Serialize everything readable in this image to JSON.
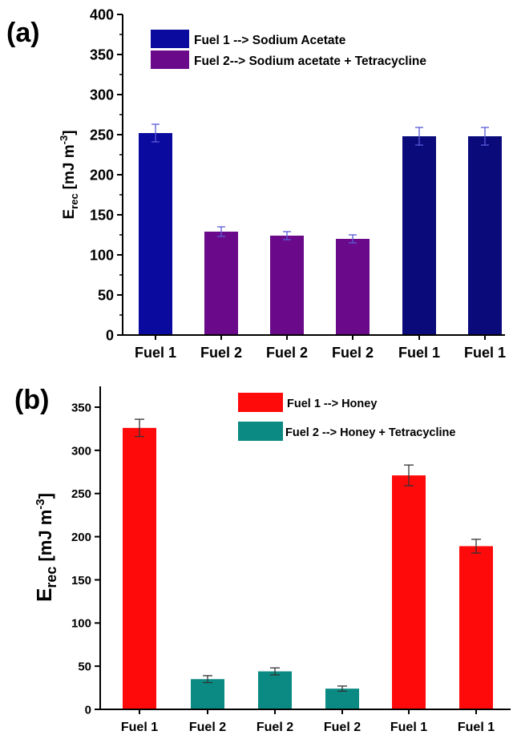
{
  "chart_data": [
    {
      "panel_label": "(a)",
      "type": "bar",
      "categories": [
        "Fuel 1",
        "Fuel 2",
        "Fuel 2",
        "Fuel 2",
        "Fuel 1",
        "Fuel 1"
      ],
      "values": [
        252,
        129,
        124,
        120,
        248,
        248
      ],
      "errors": [
        11,
        6,
        5,
        5,
        11,
        11
      ],
      "bar_colors": [
        "#0a0a9e",
        "#6a0a8a",
        "#6a0a8a",
        "#6a0a8a",
        "#0a0a7a",
        "#0a0a7a"
      ],
      "error_color": "#5a5ad8",
      "ylabel_main": "E",
      "ylabel_sub": "rec",
      "ylabel_unit": "[mJ m",
      "ylabel_sup": "-3",
      "ylabel_close": "]",
      "ylim": [
        0,
        400
      ],
      "yticks": [
        0,
        50,
        100,
        150,
        200,
        250,
        300,
        350,
        400
      ],
      "legend": [
        {
          "label": "Fuel 1 --> Sodium Acetate",
          "color": "#0a0a9e"
        },
        {
          "label": "Fuel 2--> Sodium acetate + Tetracycline",
          "color": "#6a0a8a"
        }
      ],
      "legend_position": "top",
      "grid": false
    },
    {
      "panel_label": "(b)",
      "type": "bar",
      "categories": [
        "Fuel 1",
        "Fuel 2",
        "Fuel 2",
        "Fuel 2",
        "Fuel 1",
        "Fuel 1"
      ],
      "values": [
        326,
        35,
        44,
        24,
        271,
        189
      ],
      "errors": [
        10,
        4,
        4,
        3,
        12,
        8
      ],
      "bar_colors": [
        "#ff0a0a",
        "#0a8a82",
        "#0a8a82",
        "#0a8a82",
        "#ff0a0a",
        "#ff0a0a"
      ],
      "error_color": "#333333",
      "ylabel_main": "E",
      "ylabel_sub": "rec",
      "ylabel_unit": "[mJ m",
      "ylabel_sup": "-3",
      "ylabel_close": "]",
      "ylim": [
        0,
        360
      ],
      "yticks": [
        0,
        50,
        100,
        150,
        200,
        250,
        300,
        350
      ],
      "legend": [
        {
          "label": "Fuel 1 --> Honey",
          "color": "#ff0a0a"
        },
        {
          "label": "Fuel 2 --> Honey + Tetracycline",
          "color": "#0a8a82"
        }
      ],
      "legend_position": "top-right",
      "grid": false
    }
  ]
}
